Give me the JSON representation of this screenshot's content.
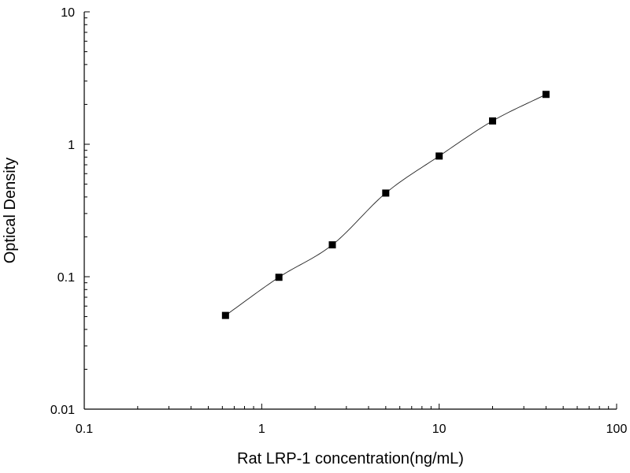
{
  "chart_data": {
    "type": "scatter",
    "title": "",
    "xlabel": "Rat LRP-1 concentration(ng/mL)",
    "ylabel": "Optical Density",
    "x_scale": "log",
    "y_scale": "log",
    "xlim": [
      0.1,
      100
    ],
    "ylim": [
      0.01,
      10
    ],
    "x_ticks": [
      0.1,
      1,
      10,
      100
    ],
    "x_tick_labels": [
      "0.1",
      "1",
      "10",
      "100"
    ],
    "y_ticks": [
      0.01,
      0.1,
      1,
      10
    ],
    "y_tick_labels": [
      "0.01",
      "0.1",
      "1",
      "10"
    ],
    "grid": false,
    "legend": "none",
    "series": [
      {
        "x": [
          0.625,
          1.25,
          2.5,
          5,
          10,
          20,
          40
        ],
        "y": [
          0.051,
          0.099,
          0.174,
          0.428,
          0.815,
          1.5,
          2.38
        ],
        "marker": "square",
        "color": "#000000",
        "fit_line": true
      }
    ]
  }
}
